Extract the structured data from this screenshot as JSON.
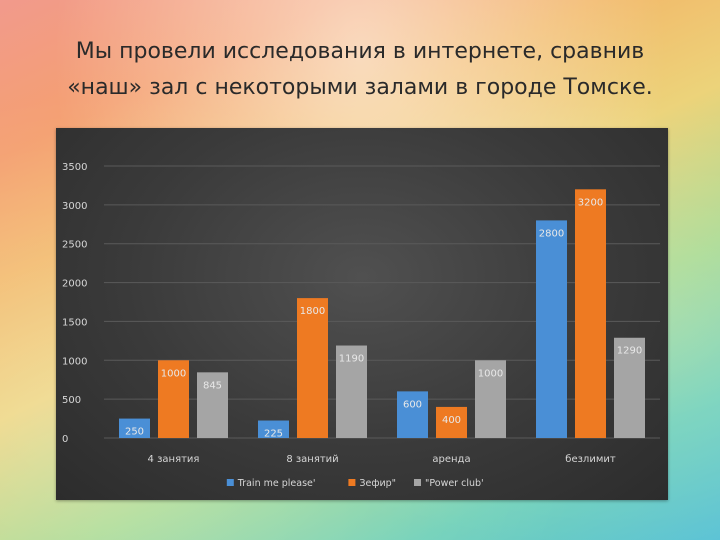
{
  "slide": {
    "title": "Мы провели исследования в интернете, сравнив\n«наш» зал с некоторыми залами в городе Томске."
  },
  "colors": {
    "series_1": "#4a8fd6",
    "series_2": "#ee7a22",
    "series_3": "#a5a5a5",
    "chart_background": "#3a3a3a"
  },
  "chart_data": {
    "type": "bar",
    "title": "",
    "xlabel": "",
    "ylabel": "",
    "ylim": [
      0,
      3500
    ],
    "yticks": [
      0,
      500,
      1000,
      1500,
      2000,
      2500,
      3000,
      3500
    ],
    "grid": true,
    "legend_position": "bottom",
    "categories": [
      "4 занятия",
      "8 занятий",
      "аренда",
      "безлимит"
    ],
    "series": [
      {
        "name": "Train me please'",
        "values": [
          250,
          225,
          600,
          2800
        ]
      },
      {
        "name": "Зефир\"",
        "values": [
          1000,
          1800,
          400,
          3200
        ]
      },
      {
        "name": "\"Power club'",
        "values": [
          845,
          1190,
          1000,
          1290
        ]
      }
    ]
  }
}
